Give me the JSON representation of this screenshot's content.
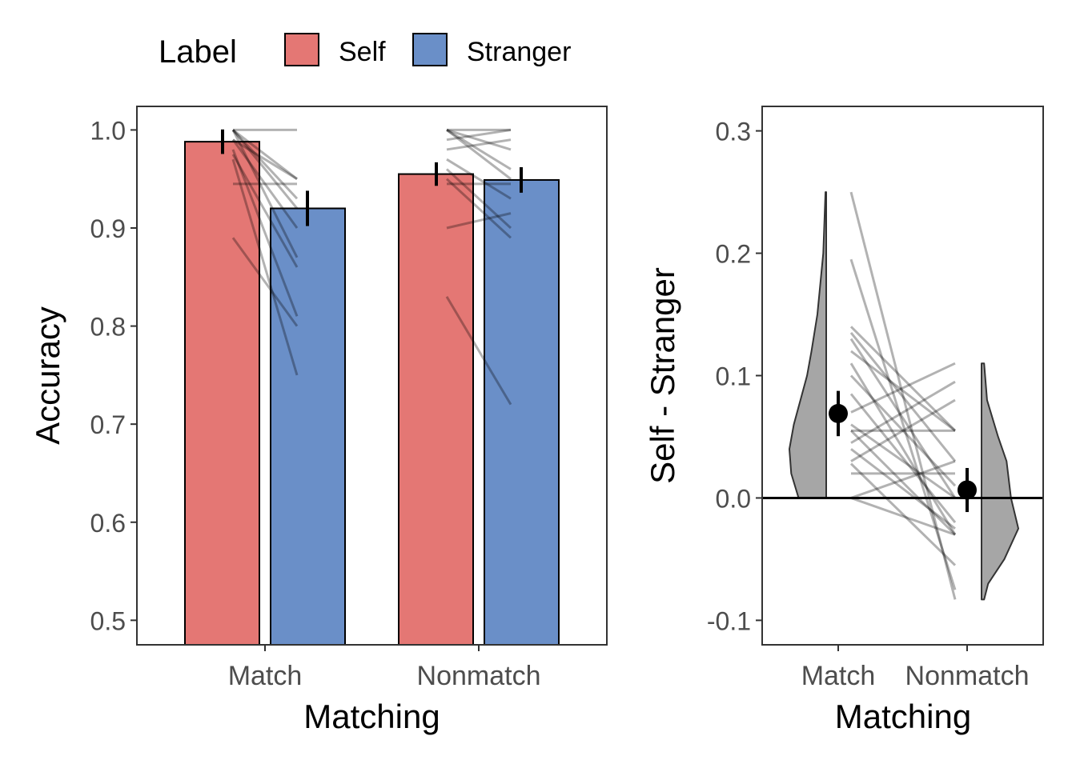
{
  "legend": {
    "title": "Label",
    "items": [
      {
        "name": "Self",
        "color": "#E47774"
      },
      {
        "name": "Stranger",
        "color": "#6A8FC8"
      }
    ]
  },
  "chart_data": [
    {
      "type": "bar",
      "xlabel": "Matching",
      "ylabel": "Accuracy",
      "categories": [
        "Match",
        "Nonmatch"
      ],
      "ylim": [
        0.475,
        1.024
      ],
      "yticks": [
        "0.5",
        "0.6",
        "0.7",
        "0.8",
        "0.9",
        "1.0"
      ],
      "grid": false,
      "series": [
        {
          "name": "Self",
          "values": [
            0.988,
            0.955
          ],
          "errors": [
            0.0125,
            0.012
          ]
        },
        {
          "name": "Stranger",
          "values": [
            0.92,
            0.949
          ],
          "errors": [
            0.018,
            0.013
          ]
        }
      ],
      "participants": {
        "Match": [
          [
            1.0,
            0.95
          ],
          [
            1.0,
            0.87
          ],
          [
            1.0,
            0.92
          ],
          [
            0.99,
            0.9
          ],
          [
            0.98,
            0.81
          ],
          [
            0.97,
            0.75
          ],
          [
            0.89,
            0.8
          ],
          [
            1.0,
            1.0
          ],
          [
            0.945,
            0.945
          ],
          [
            0.99,
            0.95
          ],
          [
            0.975,
            0.86
          ],
          [
            1.0,
            0.93
          ]
        ],
        "Nonmatch": [
          [
            1.0,
            1.0
          ],
          [
            1.0,
            0.95
          ],
          [
            0.95,
            0.89
          ],
          [
            0.83,
            0.72
          ],
          [
            1.0,
            0.98
          ],
          [
            0.9,
            0.915
          ],
          [
            0.97,
            0.93
          ],
          [
            1.0,
            0.96
          ],
          [
            0.945,
            0.945
          ],
          [
            0.99,
            1.0
          ],
          [
            0.96,
            0.9
          ],
          [
            0.98,
            0.99
          ]
        ]
      }
    },
    {
      "type": "violin",
      "xlabel": "Matching",
      "ylabel": "Self - Stranger",
      "categories": [
        "Match",
        "Nonmatch"
      ],
      "ylim": [
        -0.12,
        0.32
      ],
      "yticks": [
        "-0.1",
        "0.0",
        "0.1",
        "0.2",
        "0.3"
      ],
      "hline": 0,
      "means": [
        0.069,
        0.0065
      ],
      "errors": [
        0.0185,
        0.018
      ],
      "violins": [
        {
          "values": [
            0.0,
            0.02,
            0.04,
            0.06,
            0.08,
            0.1,
            0.12,
            0.15,
            0.2,
            0.25
          ],
          "density": [
            0.75,
            0.95,
            1.0,
            0.88,
            0.7,
            0.52,
            0.4,
            0.24,
            0.08,
            0.02
          ]
        },
        {
          "values": [
            -0.083,
            -0.07,
            -0.05,
            -0.025,
            0.0,
            0.03,
            0.05,
            0.08,
            0.11
          ],
          "density": [
            0.07,
            0.18,
            0.62,
            1.0,
            0.8,
            0.68,
            0.45,
            0.15,
            0.07
          ]
        }
      ],
      "participants": [
        [
          0.25,
          -0.083
        ],
        [
          0.195,
          -0.075
        ],
        [
          0.14,
          0.055
        ],
        [
          0.135,
          0.03
        ],
        [
          0.13,
          0.0
        ],
        [
          0.11,
          -0.03
        ],
        [
          0.1,
          0.01
        ],
        [
          0.085,
          -0.02
        ],
        [
          0.07,
          0.11
        ],
        [
          0.055,
          0.055
        ],
        [
          0.055,
          -0.03
        ],
        [
          0.045,
          0.095
        ],
        [
          0.03,
          0.08
        ],
        [
          0.028,
          -0.055
        ],
        [
          0.0,
          0.03
        ],
        [
          0.0,
          -0.03
        ],
        [
          0.06,
          0.0
        ],
        [
          0.04,
          -0.025
        ],
        [
          0.12,
          0.055
        ],
        [
          0.02,
          0.02
        ]
      ]
    }
  ]
}
